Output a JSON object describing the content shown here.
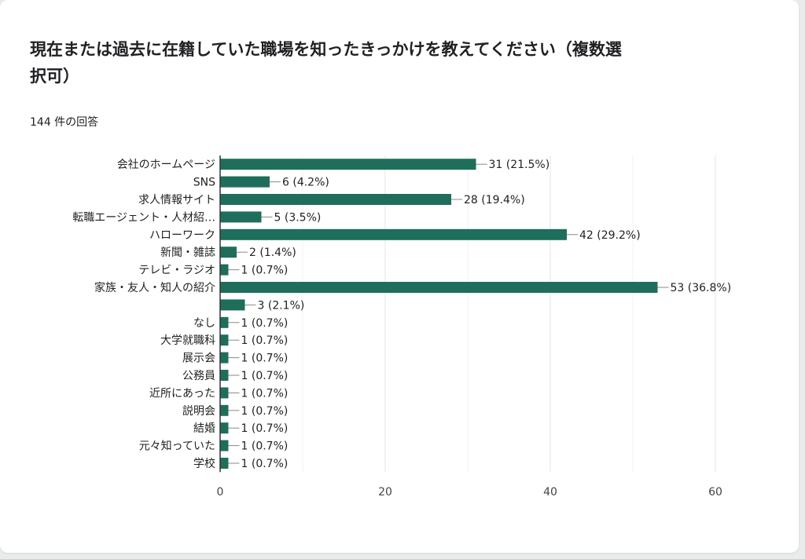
{
  "question": {
    "title": "現在または過去に在籍していた職場を知ったきっかけを教えてください（複数選択可）",
    "response_count": "144 件の回答"
  },
  "colors": {
    "bar": "#1e6e5b",
    "grid": "#e6e6e6",
    "axis": "#333333"
  },
  "chart_data": {
    "type": "bar",
    "orientation": "horizontal",
    "title": "現在または過去に在籍していた職場を知ったきっかけを教えてください（複数選択可）",
    "categories": [
      "会社のホームページ",
      "SNS",
      "求人情報サイト",
      "転職エージェント・人材紹…",
      "ハローワーク",
      "新聞・雑誌",
      "テレビ・ラジオ",
      "家族・友人・知人の紹介",
      "",
      "なし",
      "大学就職科",
      "展示会",
      "公務員",
      "近所にあった",
      "説明会",
      "結婚",
      "元々知っていた",
      "学校"
    ],
    "values": [
      31,
      6,
      28,
      5,
      42,
      2,
      1,
      53,
      3,
      1,
      1,
      1,
      1,
      1,
      1,
      1,
      1,
      1
    ],
    "value_labels": [
      "31 (21.5%)",
      "6 (4.2%)",
      "28 (19.4%)",
      "5 (3.5%)",
      "42 (29.2%)",
      "2 (1.4%)",
      "1 (0.7%)",
      "53 (36.8%)",
      "3 (2.1%)",
      "1 (0.7%)",
      "1 (0.7%)",
      "1 (0.7%)",
      "1 (0.7%)",
      "1 (0.7%)",
      "1 (0.7%)",
      "1 (0.7%)",
      "1 (0.7%)",
      "1 (0.7%)"
    ],
    "xlim": [
      0,
      60
    ],
    "xticks": [
      0,
      20,
      40,
      60
    ],
    "xtick_labels": [
      "0",
      "20",
      "40",
      "60"
    ],
    "grid": true,
    "legend": "none"
  }
}
